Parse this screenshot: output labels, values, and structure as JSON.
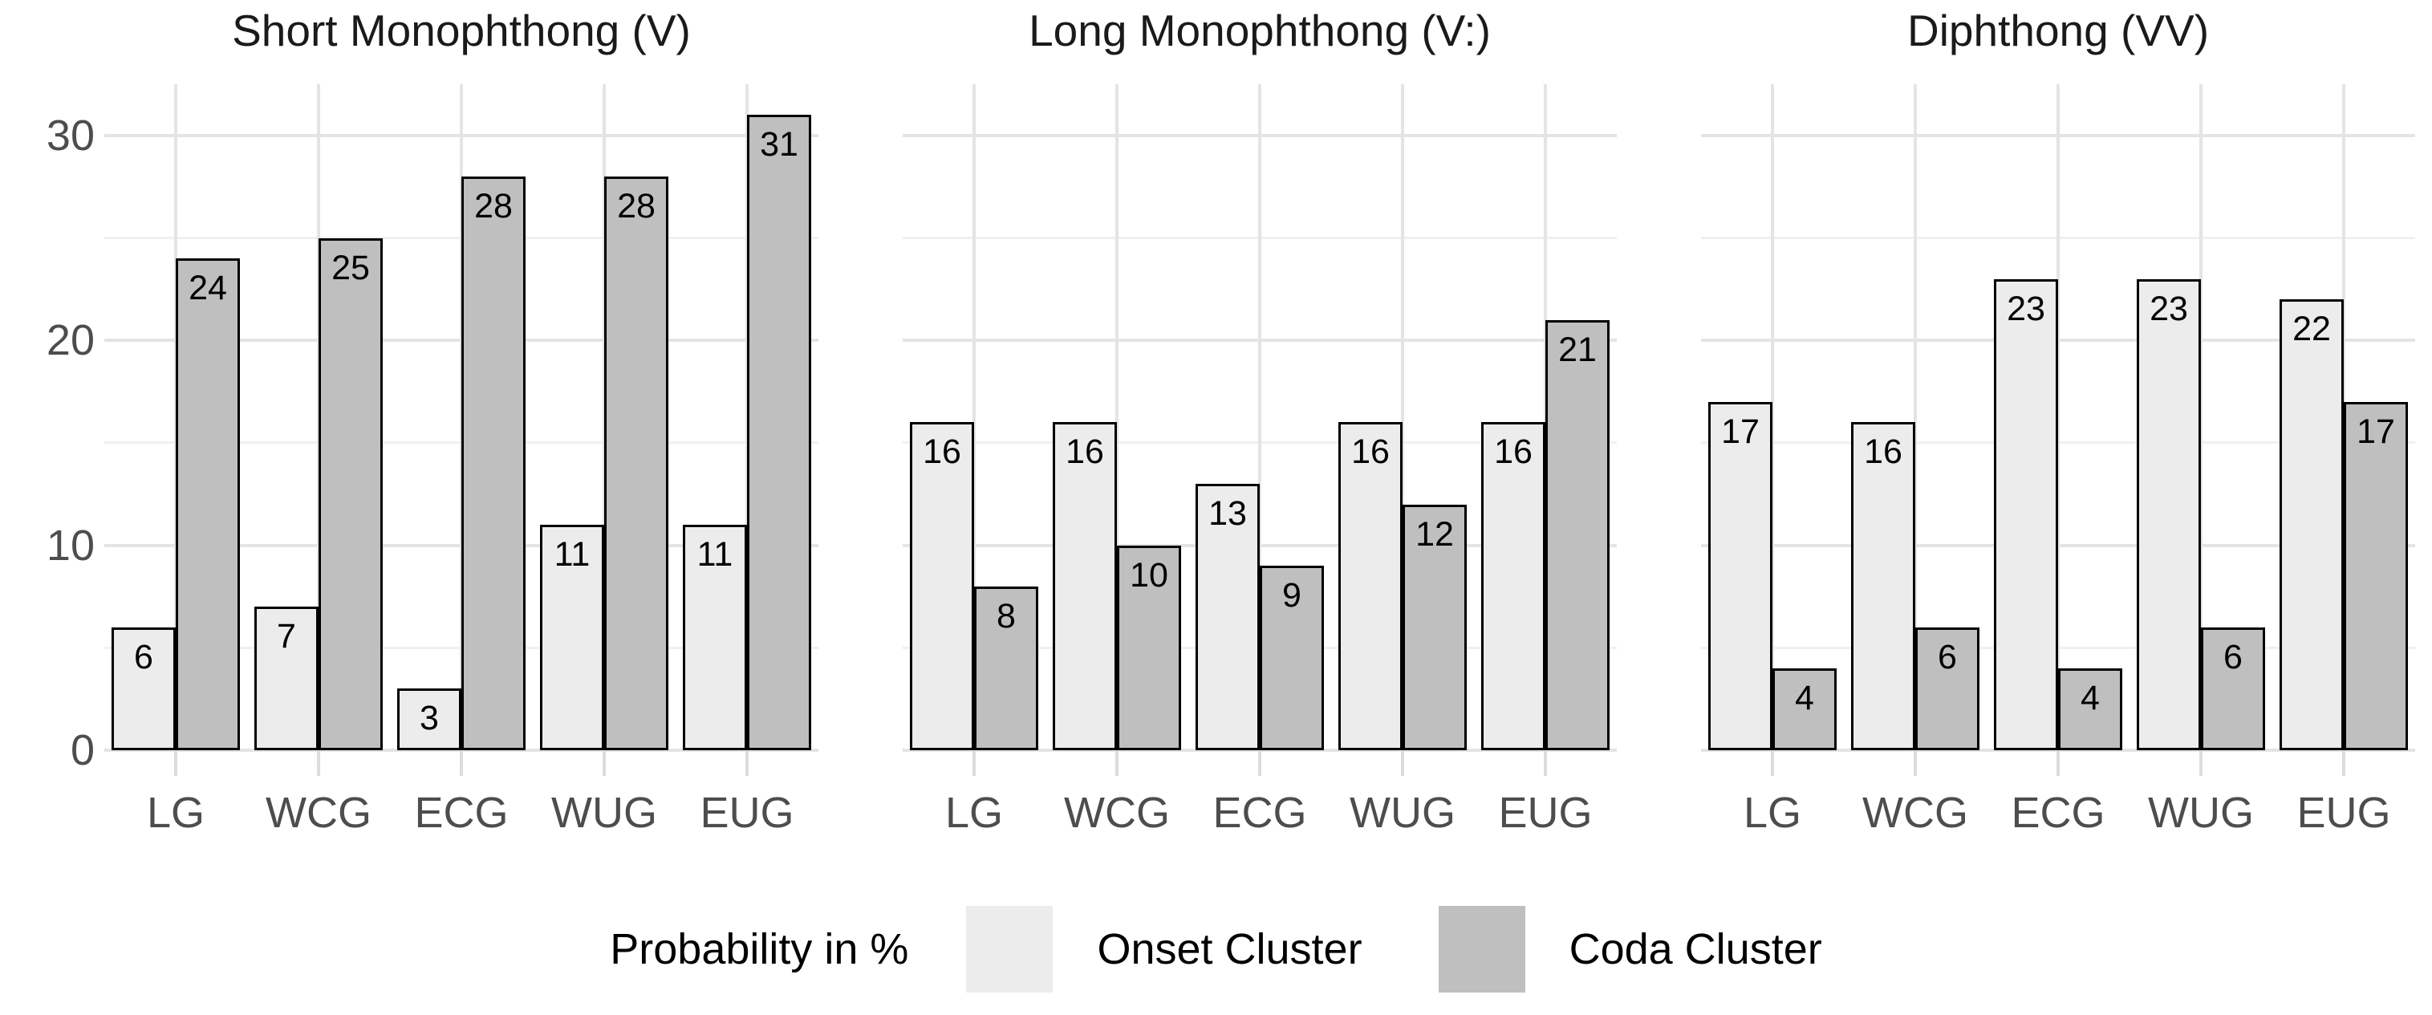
{
  "chart_data": {
    "type": "bar",
    "categories": [
      "LG",
      "WCG",
      "ECG",
      "WUG",
      "EUG"
    ],
    "facets": [
      {
        "title": "Short Monophthong (V)",
        "series": [
          {
            "name": "Onset Cluster",
            "values": [
              6,
              7,
              3,
              11,
              11
            ]
          },
          {
            "name": "Coda Cluster",
            "values": [
              24,
              25,
              28,
              28,
              31
            ]
          }
        ]
      },
      {
        "title": "Long Monophthong (V:)",
        "series": [
          {
            "name": "Onset Cluster",
            "values": [
              16,
              16,
              13,
              16,
              16
            ]
          },
          {
            "name": "Coda Cluster",
            "values": [
              8,
              10,
              9,
              12,
              21
            ]
          }
        ]
      },
      {
        "title": "Diphthong (VV)",
        "series": [
          {
            "name": "Onset Cluster",
            "values": [
              17,
              16,
              23,
              23,
              22
            ]
          },
          {
            "name": "Coda Cluster",
            "values": [
              4,
              6,
              4,
              6,
              17
            ]
          }
        ]
      }
    ],
    "legend": {
      "title": "Probability in %",
      "position": "bottom",
      "entries": [
        {
          "label": "Onset Cluster",
          "color": "#ececec"
        },
        {
          "label": "Coda Cluster",
          "color": "#bfbfbf"
        }
      ]
    },
    "y_axis": {
      "ticks": [
        0,
        10,
        20,
        30
      ],
      "minor_ticks": [
        5,
        15,
        25
      ],
      "range": [
        0,
        32.5
      ]
    },
    "x_axis": {
      "tick_labels": [
        "LG",
        "WCG",
        "ECG",
        "WUG",
        "EUG"
      ]
    },
    "style": {
      "bar_border_color": "#000000",
      "bar_label_color": "#000000",
      "grid_major_color": "#e4e4e4",
      "grid_minor_color": "#f0f0f0",
      "axis_text_color": "#4d4d4d",
      "facet_title_color": "#1a1a1a",
      "tick_mark_color": "#dcdcdc",
      "background": "#ffffff"
    },
    "grid": true,
    "bar_labels_visible": true
  }
}
